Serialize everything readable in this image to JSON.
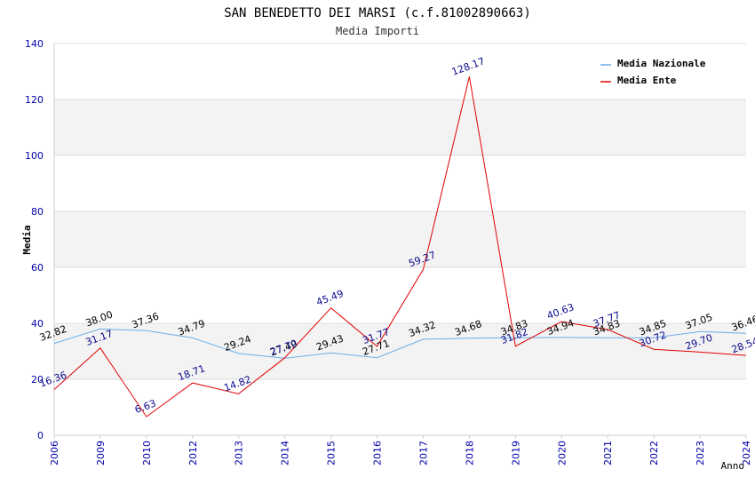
{
  "chart_data": {
    "type": "line",
    "title": "SAN BENEDETTO DEI MARSI (c.f.81002890663)",
    "subtitle": "Media Importi",
    "xlabel": "Anno",
    "ylabel": "Media",
    "ylim": [
      0,
      140
    ],
    "yticks": [
      "0",
      "20",
      "40",
      "60",
      "80",
      "100",
      "120",
      "140"
    ],
    "categories": [
      "2006",
      "2009",
      "2010",
      "2012",
      "2013",
      "2014",
      "2015",
      "2016",
      "2017",
      "2018",
      "2019",
      "2020",
      "2021",
      "2022",
      "2023",
      "2024"
    ],
    "legend_position": "top-right",
    "series": [
      {
        "name": "Media Nazionale",
        "color": "#6aaee8",
        "values": [
          32.82,
          38.0,
          37.36,
          34.79,
          29.24,
          27.49,
          29.43,
          27.71,
          34.32,
          34.68,
          34.83,
          34.94,
          34.83,
          34.85,
          37.05,
          36.46
        ],
        "labels": [
          "32.82",
          "38.00",
          "37.36",
          "34.79",
          "29.24",
          "27.49",
          "29.43",
          "27.71",
          "34.32",
          "34.68",
          "34.83",
          "34.94",
          "34.83",
          "34.85",
          "37.05",
          "36.46"
        ]
      },
      {
        "name": "Media Ente",
        "color": "#e00000",
        "values": [
          16.36,
          31.17,
          6.63,
          18.71,
          14.82,
          27.7,
          45.49,
          31.77,
          59.27,
          128.17,
          31.82,
          40.63,
          37.77,
          30.72,
          29.7,
          28.54
        ],
        "labels": [
          "16.36",
          "31.17",
          "6.63",
          "18.71",
          "14.82",
          "27.70",
          "45.49",
          "31.77",
          "59.27",
          "128.17",
          "31.82",
          "40.63",
          "37.77",
          "30.72",
          "29.70",
          "28.54"
        ]
      }
    ]
  }
}
